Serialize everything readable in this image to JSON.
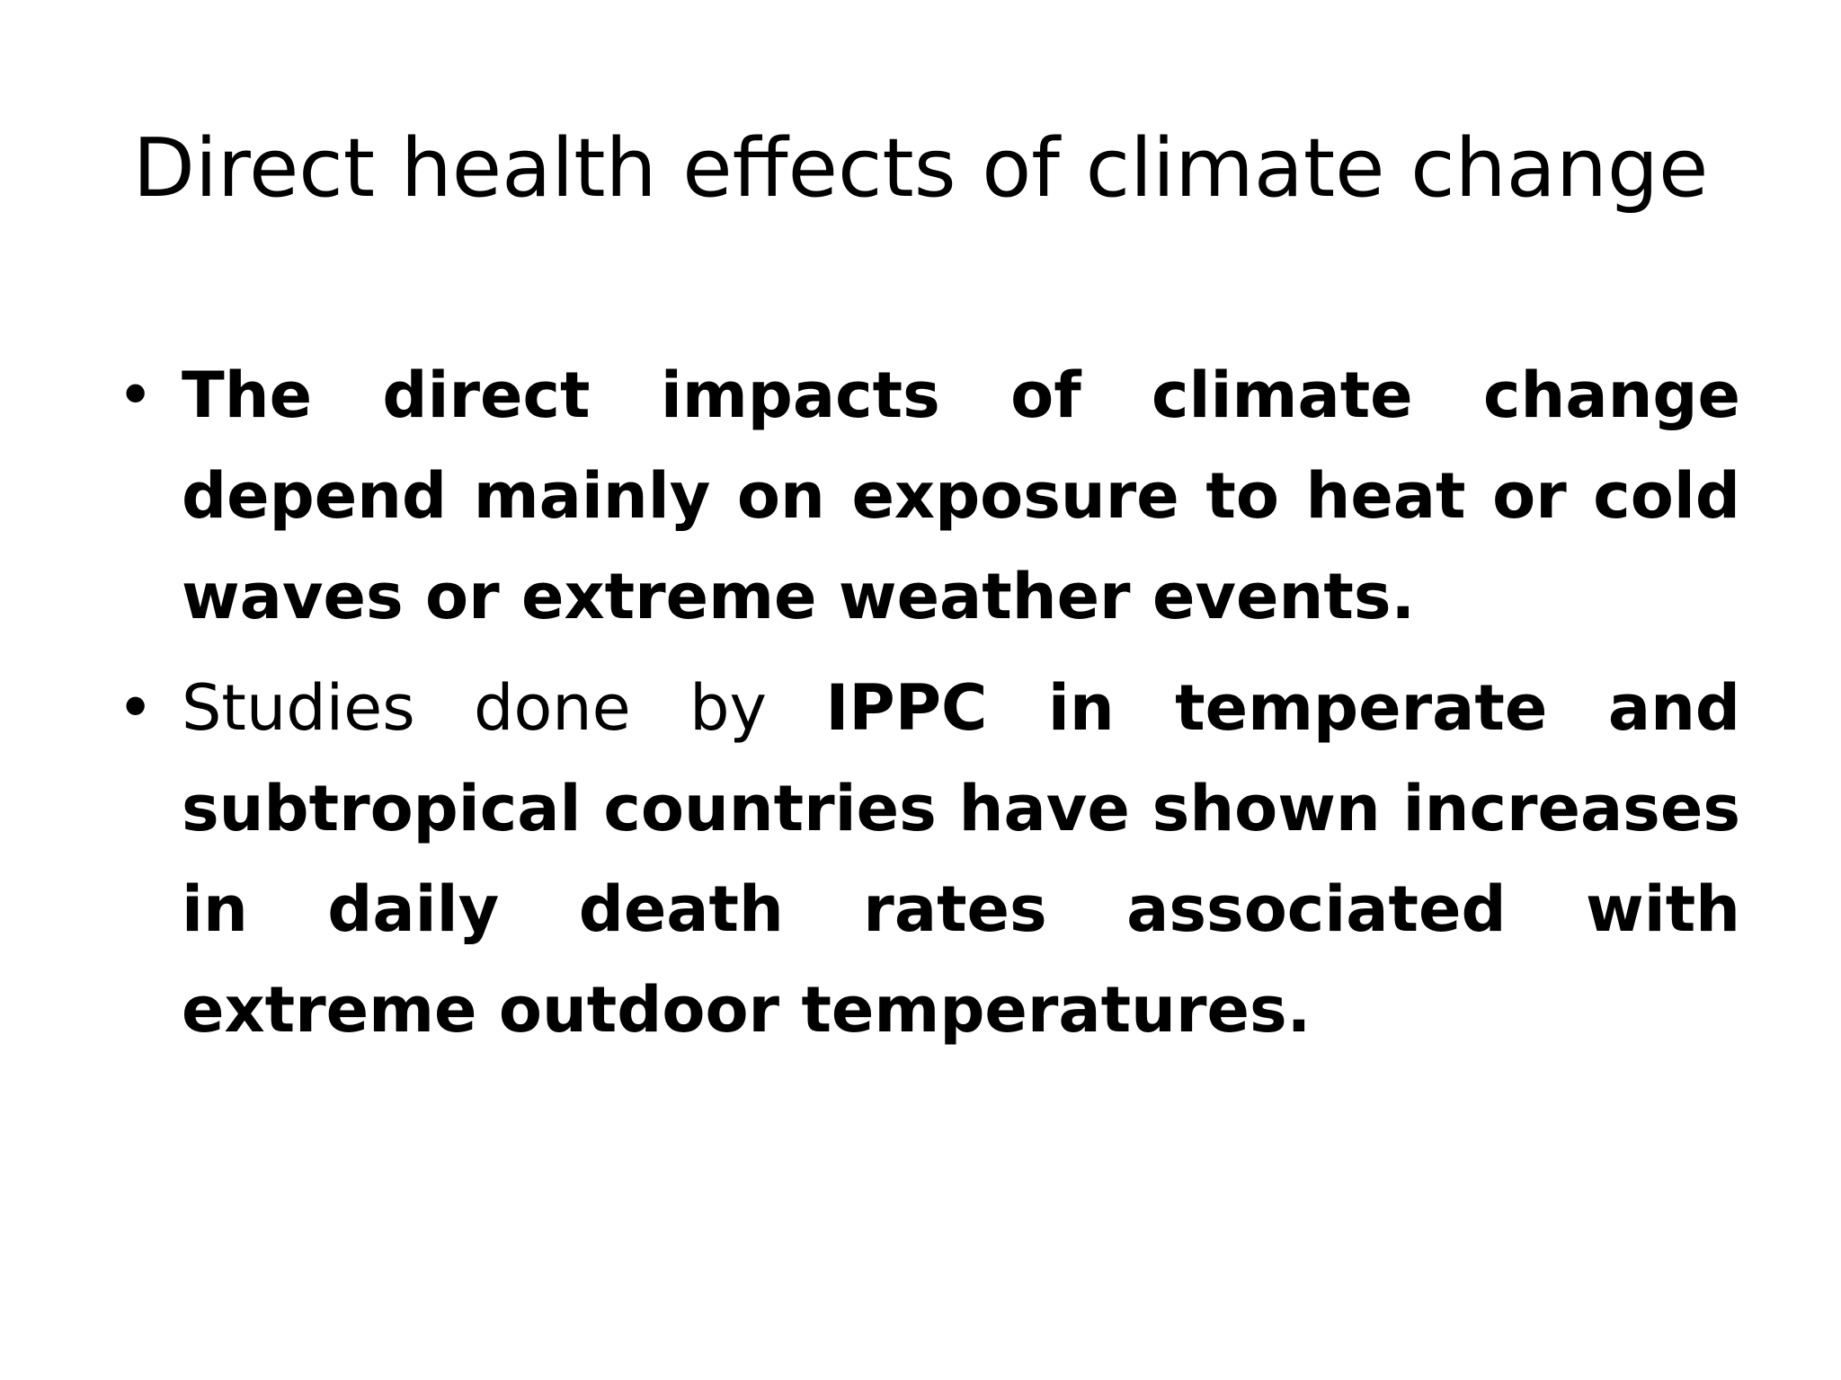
{
  "slide": {
    "title": "Direct health effects of climate change",
    "bullet_glyph": "•",
    "bullets": [
      {
        "text": "The direct impacts of climate change depend mainly on exposure to heat or cold waves or extreme weather events."
      },
      {
        "text_normal": "Studies done by ",
        "text_bold": "IPPC in temperate and subtropical countries have shown increases in daily death rates associated with extreme outdoor temperatures."
      }
    ]
  }
}
